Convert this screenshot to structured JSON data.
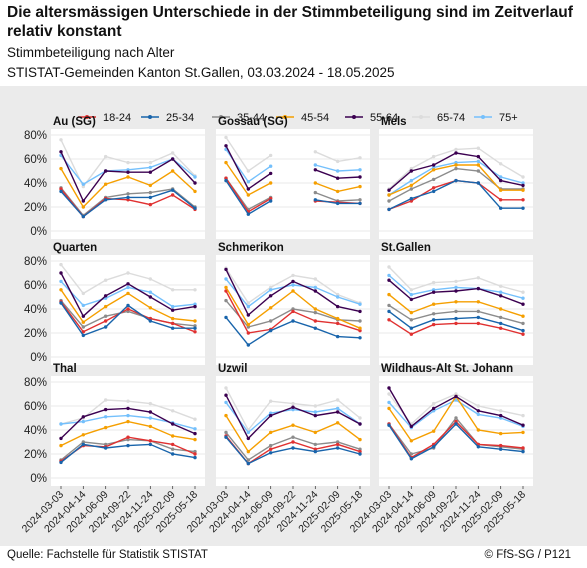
{
  "header": {
    "title": "Die altersmässigen Unterschiede in der Stimmbeteiligung sind im Zeitverlauf relativ konstant",
    "subtitle": "Stimmbeteiligung nach Alter",
    "subtitle2": "STISTAT-Gemeinden Kanton St.Gallen, 03.03.2024 - 18.05.2025"
  },
  "footer": {
    "source": "Quelle: Fachstelle für Statistik STISTAT",
    "copyright": "© FfS-SG / P121"
  },
  "colors": {
    "18-24": "#e03131",
    "25-34": "#1864ab",
    "35-44": "#8c8c8c",
    "45-54": "#f59f00",
    "55-64": "#3b0050",
    "65-74": "#dcdcdc",
    "75+": "#74c0fc",
    "panel_bg": "#ebebeb",
    "plot_bg": "#ffffff"
  },
  "chart_data": {
    "type": "line",
    "x": [
      "2024-03-03",
      "2024-04-14",
      "2024-06-09",
      "2024-09-22",
      "2024-11-24",
      "2025-02-09",
      "2025-05-18"
    ],
    "yticks": [
      "80%",
      "60%",
      "40%",
      "20%",
      "0%"
    ],
    "ylim": [
      0,
      80
    ],
    "legend": [
      "18-24",
      "25-34",
      "35-44",
      "45-54",
      "55-64",
      "65-74",
      "75+"
    ],
    "legend_position": "top",
    "grid": true,
    "panels": [
      {
        "name": "Au (SG)",
        "series": {
          "18-24": [
            35,
            12,
            27,
            26,
            22,
            30,
            18
          ],
          "25-34": [
            33,
            12,
            26,
            28,
            28,
            34,
            19
          ],
          "35-44": [
            36,
            13,
            28,
            31,
            32,
            35,
            20
          ],
          "45-54": [
            52,
            20,
            39,
            45,
            38,
            50,
            33
          ],
          "55-64": [
            66,
            25,
            50,
            49,
            49,
            60,
            40
          ],
          "65-74": [
            76,
            37,
            62,
            57,
            57,
            65,
            46
          ],
          "75+": [
            63,
            39,
            50,
            51,
            53,
            60,
            45
          ]
        }
      },
      {
        "name": "Gossau (SG)",
        "series": {
          "18-24": [
            44,
            16,
            27,
            null,
            25,
            24,
            23
          ],
          "25-34": [
            42,
            14,
            25,
            null,
            26,
            23,
            23
          ],
          "35-44": [
            44,
            18,
            28,
            null,
            32,
            25,
            26
          ],
          "45-54": [
            57,
            30,
            40,
            null,
            40,
            33,
            37
          ],
          "55-64": [
            71,
            35,
            48,
            null,
            51,
            44,
            45
          ],
          "65-74": [
            78,
            50,
            63,
            null,
            66,
            58,
            61
          ],
          "75+": [
            68,
            41,
            54,
            null,
            55,
            50,
            51
          ]
        }
      },
      {
        "name": "Mels",
        "series": {
          "18-24": [
            18,
            25,
            36,
            42,
            40,
            26,
            26
          ],
          "25-34": [
            18,
            27,
            33,
            42,
            40,
            19,
            19
          ],
          "35-44": [
            25,
            35,
            43,
            52,
            50,
            35,
            35
          ],
          "45-54": [
            30,
            38,
            51,
            55,
            55,
            34,
            34
          ],
          "55-64": [
            34,
            50,
            55,
            65,
            62,
            42,
            38
          ],
          "65-74": [
            35,
            52,
            62,
            68,
            69,
            56,
            45
          ],
          "75+": [
            30,
            42,
            53,
            57,
            58,
            45,
            40
          ]
        }
      },
      {
        "name": "Quarten",
        "series": {
          "18-24": [
            46,
            21,
            30,
            40,
            32,
            28,
            21
          ],
          "25-34": [
            45,
            18,
            25,
            43,
            30,
            24,
            24
          ],
          "35-44": [
            47,
            25,
            34,
            38,
            32,
            28,
            26
          ],
          "45-54": [
            56,
            29,
            42,
            53,
            41,
            32,
            30
          ],
          "55-64": [
            70,
            34,
            51,
            61,
            50,
            39,
            42
          ],
          "65-74": [
            77,
            53,
            64,
            70,
            65,
            56,
            56
          ],
          "75+": [
            63,
            43,
            49,
            58,
            54,
            42,
            44
          ]
        }
      },
      {
        "name": "Schmerikon",
        "series": {
          "18-24": [
            55,
            20,
            23,
            38,
            30,
            28,
            22
          ],
          "25-34": [
            33,
            10,
            22,
            30,
            24,
            17,
            16
          ],
          "35-44": [
            47,
            25,
            30,
            40,
            37,
            31,
            30
          ],
          "45-54": [
            58,
            27,
            41,
            55,
            40,
            32,
            24
          ],
          "55-64": [
            73,
            35,
            51,
            63,
            55,
            42,
            38
          ],
          "65-74": [
            74,
            45,
            58,
            68,
            65,
            52,
            45
          ],
          "75+": [
            65,
            42,
            56,
            60,
            58,
            50,
            44
          ]
        }
      },
      {
        "name": "St.Gallen",
        "series": {
          "18-24": [
            31,
            19,
            27,
            28,
            28,
            24,
            19
          ],
          "25-34": [
            38,
            24,
            31,
            32,
            33,
            28,
            22
          ],
          "35-44": [
            43,
            31,
            36,
            38,
            38,
            33,
            28
          ],
          "45-54": [
            52,
            37,
            44,
            46,
            46,
            40,
            34
          ],
          "55-64": [
            64,
            48,
            54,
            55,
            57,
            51,
            44
          ],
          "65-74": [
            75,
            56,
            62,
            63,
            66,
            59,
            54
          ],
          "75+": [
            68,
            52,
            56,
            58,
            57,
            54,
            49
          ]
        }
      },
      {
        "name": "Thal",
        "series": {
          "18-24": [
            14,
            27,
            26,
            34,
            31,
            28,
            20
          ],
          "25-34": [
            13,
            28,
            25,
            27,
            28,
            20,
            17
          ],
          "35-44": [
            15,
            30,
            28,
            32,
            31,
            24,
            22
          ],
          "45-54": [
            27,
            36,
            42,
            47,
            43,
            35,
            32
          ],
          "55-64": [
            33,
            51,
            57,
            58,
            55,
            45,
            37
          ],
          "65-74": [
            45,
            50,
            65,
            64,
            62,
            56,
            49
          ],
          "75+": [
            45,
            47,
            51,
            52,
            50,
            46,
            41
          ]
        }
      },
      {
        "name": "Uzwil",
        "series": {
          "18-24": [
            35,
            12,
            24,
            30,
            24,
            28,
            22
          ],
          "25-34": [
            34,
            12,
            21,
            25,
            22,
            25,
            20
          ],
          "35-44": [
            38,
            15,
            27,
            34,
            28,
            30,
            24
          ],
          "45-54": [
            52,
            22,
            38,
            44,
            38,
            46,
            32
          ],
          "55-64": [
            69,
            33,
            52,
            59,
            52,
            55,
            45
          ],
          "65-74": [
            75,
            40,
            64,
            62,
            60,
            65,
            50
          ],
          "75+": [
            63,
            38,
            54,
            57,
            55,
            58,
            45
          ]
        }
      },
      {
        "name": "Wildhaus-Alt St. Johann",
        "series": {
          "18-24": [
            45,
            17,
            28,
            47,
            28,
            27,
            25
          ],
          "25-34": [
            44,
            16,
            26,
            45,
            26,
            24,
            22
          ],
          "35-44": [
            45,
            20,
            25,
            50,
            28,
            26,
            24
          ],
          "45-54": [
            58,
            31,
            39,
            68,
            40,
            37,
            38
          ],
          "55-64": [
            75,
            43,
            58,
            68,
            56,
            52,
            44
          ],
          "65-74": [
            70,
            45,
            62,
            70,
            60,
            56,
            52
          ],
          "75+": [
            63,
            42,
            56,
            65,
            53,
            50,
            43
          ]
        }
      }
    ]
  }
}
